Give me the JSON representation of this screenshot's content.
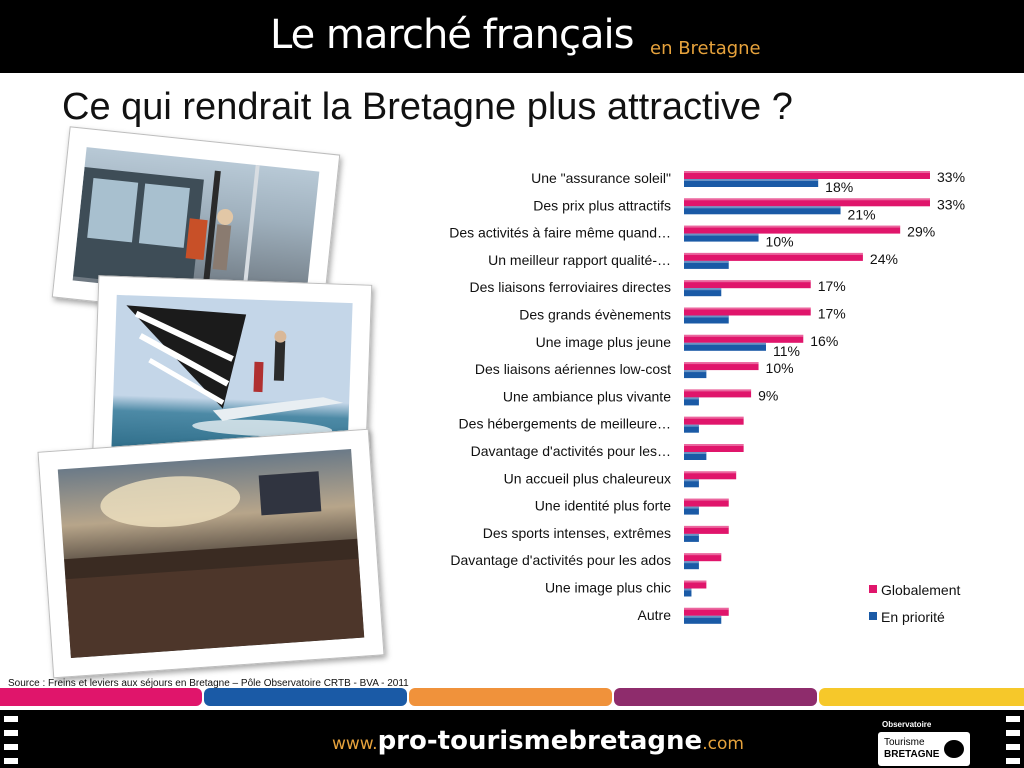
{
  "header": {
    "title": "Le marché français",
    "subtitle": "en Bretagne"
  },
  "slide": {
    "title": "Ce qui rendrait la Bretagne plus attractive ?"
  },
  "photos": [
    {
      "name": "photo-tram-station"
    },
    {
      "name": "photo-catamaran-sailing"
    },
    {
      "name": "photo-concert-crowd"
    }
  ],
  "chart_data": {
    "type": "bar",
    "orientation": "horizontal",
    "categories": [
      "Une \"assurance soleil\"",
      "Des prix plus attractifs",
      "Des activités à faire même quand…",
      "Un meilleur rapport qualité-…",
      "Des liaisons ferroviaires directes",
      "Des grands évènements",
      "Une image plus jeune",
      "Des liaisons aériennes low-cost",
      "Une ambiance plus vivante",
      "Des hébergements de meilleure…",
      "Davantage d'activités pour les…",
      "Un accueil plus chaleureux",
      "Une identité plus forte",
      "Des sports intenses, extrêmes",
      "Davantage d'activités pour les ados",
      "Une image plus chic",
      "Autre"
    ],
    "series": [
      {
        "name": "Globalement",
        "color": "#e0156b",
        "values": [
          33,
          33,
          29,
          24,
          17,
          17,
          16,
          10,
          9,
          8,
          8,
          7,
          6,
          6,
          5,
          3,
          6
        ],
        "labels": [
          "33%",
          "33%",
          "29%",
          "24%",
          "17%",
          "17%",
          "16%",
          "10%",
          "9%",
          "",
          "",
          "",
          "",
          "",
          "",
          "",
          ""
        ]
      },
      {
        "name": "En priorité",
        "color": "#1a5aa6",
        "values": [
          18,
          21,
          10,
          6,
          5,
          6,
          11,
          3,
          2,
          2,
          3,
          2,
          2,
          2,
          2,
          1,
          5
        ],
        "labels": [
          "18%",
          "21%",
          "10%",
          "",
          "",
          "",
          "11%",
          "",
          "",
          "",
          "",
          "",
          "",
          "",
          "",
          "",
          ""
        ]
      }
    ],
    "xlim": [
      0,
      36
    ],
    "grid": false,
    "legend_position": "bottom-right"
  },
  "source": "Source : Freins et leviers aux séjours en Bretagne – Pôle Observatoire CRTB - BVA - 2011",
  "footer": {
    "stripe_colors": [
      "#e0156b",
      "#1a5aa6",
      "#f0923b",
      "#8e2c6c",
      "#f6c82a"
    ],
    "url_prefix": "www.",
    "url_main": "pro-tourismebretagne",
    "url_suffix": ".com",
    "logo_top": "Observatoire",
    "logo_line1": "Tourisme",
    "logo_line2": "BRETAGNE"
  }
}
